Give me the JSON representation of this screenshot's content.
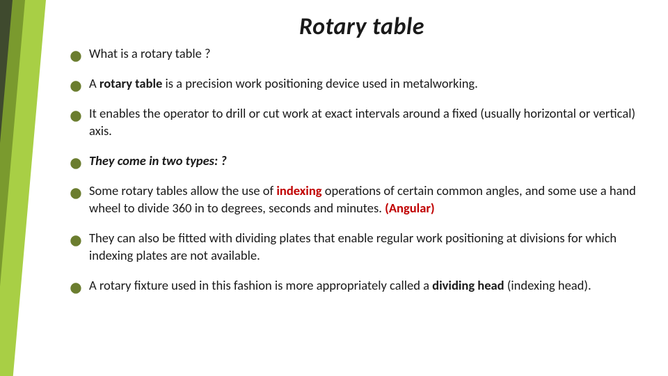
{
  "slide": {
    "title": "Rotary table",
    "title_style": {
      "fontsize": 34,
      "italic": true,
      "bold": true,
      "color": "#1a1a1a"
    },
    "body_fontsize": 18.5,
    "body_color": "#1a1a1a",
    "bullet_color": "#6b7d2f",
    "highlight_color": "#c00000",
    "sidebar_colors": [
      "#3f4a2e",
      "#7a9a2e",
      "#a8cf45"
    ],
    "background_color": "#ffffff",
    "bullets": [
      {
        "runs": [
          {
            "t": "What is a rotary table ?"
          }
        ]
      },
      {
        "runs": [
          {
            "t": "A "
          },
          {
            "t": "rotary table",
            "bold": true
          },
          {
            "t": " is a precision work positioning device used in metalworking."
          }
        ]
      },
      {
        "runs": [
          {
            "t": "It enables the operator to drill or cut work at exact intervals around a fixed (usually horizontal or vertical) axis."
          }
        ]
      },
      {
        "runs": [
          {
            "t": "They come in two types: ?",
            "bold": true,
            "italic": true
          }
        ]
      },
      {
        "runs": [
          {
            "t": "Some rotary tables allow the use of "
          },
          {
            "t": "indexing",
            "red": true
          },
          {
            "t": " operations of certain common angles, and some use a hand wheel to divide 360 in to degrees, seconds and minutes. "
          },
          {
            "t": "(Angular)",
            "red": true
          }
        ]
      },
      {
        "runs": [
          {
            "t": "They can also be fitted with dividing plates that enable regular work positioning at divisions for which indexing plates are not available."
          }
        ]
      },
      {
        "runs": [
          {
            "t": "A rotary fixture used in this fashion is more appropriately called a "
          },
          {
            "t": "dividing head",
            "bold": true
          },
          {
            "t": " (indexing head)."
          }
        ]
      }
    ]
  }
}
